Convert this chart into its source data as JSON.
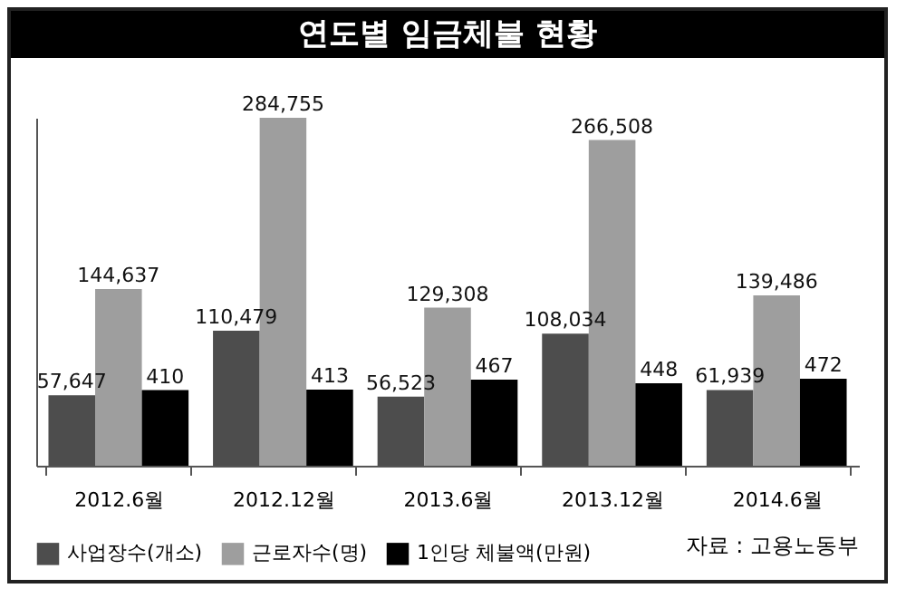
{
  "chart_data": {
    "type": "bar",
    "title": "연도별 임금체불 현황",
    "categories": [
      "2012.6월",
      "2012.12월",
      "2013.6월",
      "2013.12월",
      "2014.6월"
    ],
    "series": [
      {
        "name": "사업장수(개소)",
        "color": "#4d4d4d",
        "values": [
          57647,
          110479,
          56523,
          108034,
          61939
        ],
        "value_labels": [
          "57,647",
          "110,479",
          "56,523",
          "108,034",
          "61,939"
        ]
      },
      {
        "name": "근로자수(명)",
        "color": "#9e9e9e",
        "values": [
          144637,
          284755,
          129308,
          266508,
          139486
        ],
        "value_labels": [
          "144,637",
          "284,755",
          "129,308",
          "266,508",
          "139,486"
        ]
      },
      {
        "name": "1인당 체불액(만원)",
        "color": "#000000",
        "values": [
          410,
          413,
          467,
          448,
          472
        ],
        "value_labels": [
          "410",
          "413",
          "467",
          "448",
          "472"
        ],
        "axis": "y2"
      }
    ],
    "legend": "bottom",
    "tick_labels": "x",
    "annotations": [
      "자료 : 고용노동부"
    ]
  }
}
